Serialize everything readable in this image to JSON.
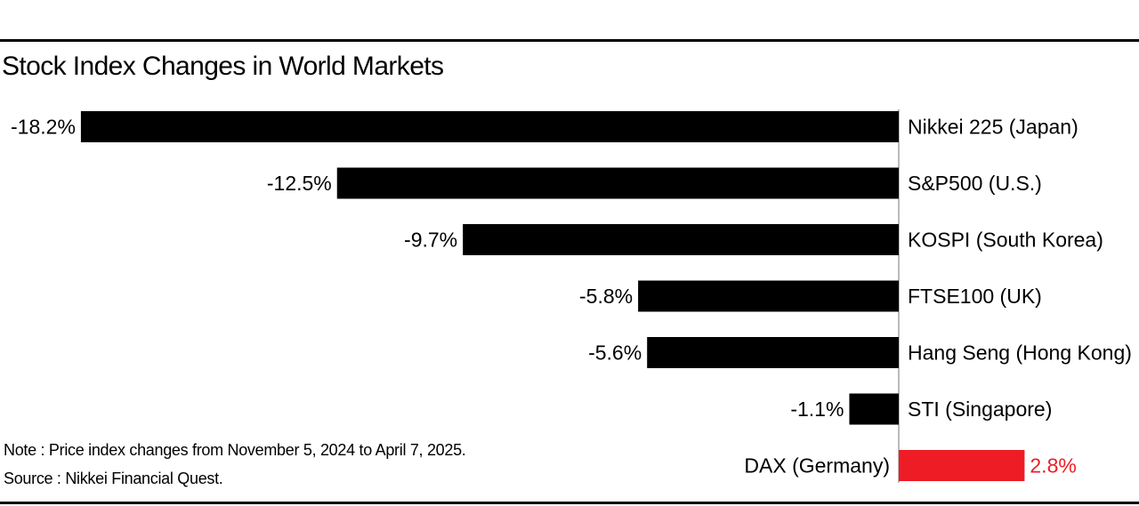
{
  "chart_data": {
    "type": "bar",
    "orientation": "horizontal",
    "title": "Stock Index Changes in World Markets",
    "categories": [
      "Nikkei 225 (Japan)",
      "S&P500 (U.S.)",
      "KOSPI (South Korea)",
      "FTSE100 (UK)",
      "Hang Seng (Hong Kong)",
      "STI (Singapore)",
      "DAX (Germany)"
    ],
    "values": [
      -18.2,
      -12.5,
      -9.7,
      -5.8,
      -5.6,
      -1.1,
      2.8
    ],
    "value_labels": [
      "-18.2%",
      "-12.5%",
      "-9.7%",
      "-5.8%",
      "-5.6%",
      "-1.1%",
      "2.8%"
    ],
    "colors": {
      "negative": "#000000",
      "positive": "#ee1c25",
      "positive_label": "#ee1c25"
    },
    "grid": false
  },
  "notes": {
    "note": "Note : Price index changes from November 5, 2024 to April 7, 2025.",
    "source": "Source : Nikkei Financial Quest."
  }
}
